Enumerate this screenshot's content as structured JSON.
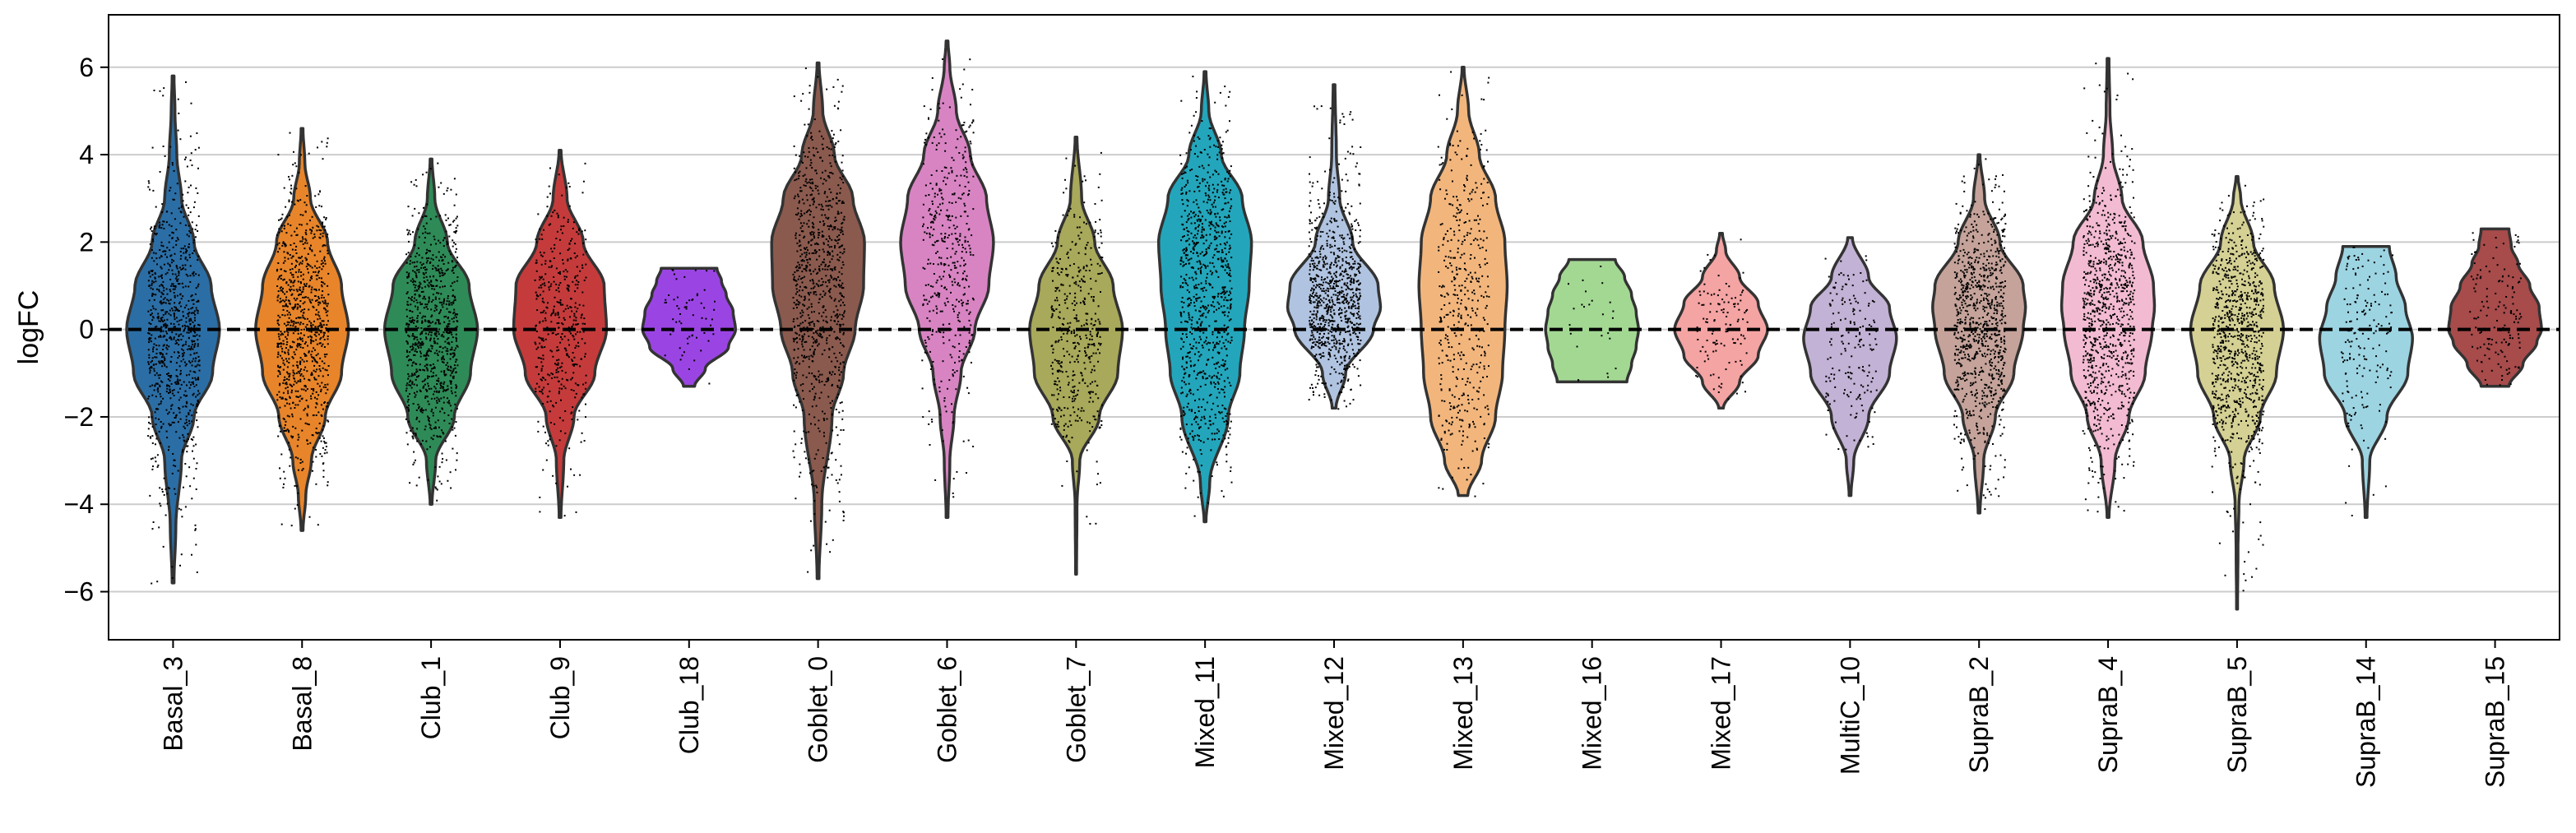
{
  "chart_data": {
    "type": "violin",
    "ylabel": "logFC",
    "ylim": [
      -7.1,
      7.2
    ],
    "yticks": [
      -6,
      -4,
      -2,
      0,
      2,
      4,
      6
    ],
    "grid": "horizontal",
    "reference_line": 0,
    "categories": [
      {
        "name": "Basal_3",
        "color": "#2b6ea5",
        "min": -5.8,
        "max": 5.8,
        "points": 900,
        "profile": [
          [
            -5.8,
            0.02
          ],
          [
            -4.5,
            0.06
          ],
          [
            -3.0,
            0.18
          ],
          [
            -2.0,
            0.45
          ],
          [
            -1.0,
            0.85
          ],
          [
            0.0,
            1.0
          ],
          [
            1.0,
            0.82
          ],
          [
            2.0,
            0.45
          ],
          [
            3.0,
            0.18
          ],
          [
            4.0,
            0.08
          ],
          [
            5.0,
            0.04
          ],
          [
            5.8,
            0.02
          ]
        ]
      },
      {
        "name": "Basal_8",
        "color": "#e8852a",
        "min": -4.6,
        "max": 4.6,
        "points": 900,
        "profile": [
          [
            -4.6,
            0.02
          ],
          [
            -3.8,
            0.08
          ],
          [
            -3.0,
            0.2
          ],
          [
            -2.0,
            0.5
          ],
          [
            -1.0,
            0.85
          ],
          [
            0.0,
            1.0
          ],
          [
            1.0,
            0.85
          ],
          [
            2.0,
            0.55
          ],
          [
            3.0,
            0.18
          ],
          [
            3.8,
            0.06
          ],
          [
            4.6,
            0.02
          ]
        ]
      },
      {
        "name": "Club_1",
        "color": "#2e8b57",
        "min": -4.0,
        "max": 3.9,
        "points": 900,
        "profile": [
          [
            -4.0,
            0.02
          ],
          [
            -3.0,
            0.1
          ],
          [
            -2.0,
            0.5
          ],
          [
            -1.0,
            0.85
          ],
          [
            0.0,
            1.0
          ],
          [
            1.0,
            0.82
          ],
          [
            2.0,
            0.35
          ],
          [
            3.0,
            0.08
          ],
          [
            3.9,
            0.02
          ]
        ]
      },
      {
        "name": "Club_9",
        "color": "#c53b3b",
        "min": -4.3,
        "max": 4.1,
        "points": 450,
        "profile": [
          [
            -4.3,
            0.02
          ],
          [
            -3.0,
            0.08
          ],
          [
            -2.0,
            0.3
          ],
          [
            -1.0,
            0.75
          ],
          [
            0.0,
            1.0
          ],
          [
            1.0,
            0.95
          ],
          [
            2.0,
            0.5
          ],
          [
            3.0,
            0.15
          ],
          [
            4.1,
            0.02
          ]
        ]
      },
      {
        "name": "Club_18",
        "color": "#9a45e3",
        "min": -1.3,
        "max": 1.4,
        "points": 60,
        "profile": [
          [
            -1.3,
            0.12
          ],
          [
            -0.9,
            0.35
          ],
          [
            -0.4,
            0.85
          ],
          [
            0.0,
            1.0
          ],
          [
            0.4,
            0.95
          ],
          [
            0.8,
            0.8
          ],
          [
            1.1,
            0.7
          ],
          [
            1.4,
            0.6
          ]
        ]
      },
      {
        "name": "Goblet_0",
        "color": "#8b5a4e",
        "min": -5.7,
        "max": 6.1,
        "points": 900,
        "profile": [
          [
            -5.7,
            0.02
          ],
          [
            -4.0,
            0.08
          ],
          [
            -2.0,
            0.3
          ],
          [
            -1.0,
            0.55
          ],
          [
            0.0,
            0.8
          ],
          [
            1.0,
            0.98
          ],
          [
            2.0,
            1.0
          ],
          [
            3.0,
            0.75
          ],
          [
            4.0,
            0.35
          ],
          [
            5.0,
            0.1
          ],
          [
            6.1,
            0.02
          ]
        ]
      },
      {
        "name": "Goblet_6",
        "color": "#d884c3",
        "min": -4.3,
        "max": 6.6,
        "points": 450,
        "profile": [
          [
            -4.3,
            0.02
          ],
          [
            -3.0,
            0.06
          ],
          [
            -2.0,
            0.15
          ],
          [
            -1.0,
            0.3
          ],
          [
            0.0,
            0.6
          ],
          [
            1.0,
            0.9
          ],
          [
            2.0,
            1.0
          ],
          [
            3.0,
            0.85
          ],
          [
            4.0,
            0.5
          ],
          [
            5.0,
            0.2
          ],
          [
            6.0,
            0.06
          ],
          [
            6.6,
            0.02
          ]
        ]
      },
      {
        "name": "Goblet_7",
        "color": "#a8a95a",
        "min": -5.6,
        "max": 4.4,
        "points": 450,
        "profile": [
          [
            -5.6,
            0.01
          ],
          [
            -4.0,
            0.02
          ],
          [
            -3.0,
            0.08
          ],
          [
            -2.0,
            0.5
          ],
          [
            -1.0,
            0.9
          ],
          [
            0.0,
            1.0
          ],
          [
            1.0,
            0.8
          ],
          [
            2.0,
            0.4
          ],
          [
            3.0,
            0.12
          ],
          [
            4.4,
            0.02
          ]
        ]
      },
      {
        "name": "Mixed_11",
        "color": "#23a6bb",
        "min": -4.4,
        "max": 5.9,
        "points": 900,
        "profile": [
          [
            -4.4,
            0.02
          ],
          [
            -3.5,
            0.1
          ],
          [
            -2.0,
            0.5
          ],
          [
            -1.0,
            0.75
          ],
          [
            0.0,
            0.85
          ],
          [
            1.0,
            0.95
          ],
          [
            2.0,
            1.0
          ],
          [
            3.0,
            0.8
          ],
          [
            4.0,
            0.35
          ],
          [
            5.0,
            0.08
          ],
          [
            5.9,
            0.02
          ]
        ]
      },
      {
        "name": "Mixed_12",
        "color": "#b0c4e1",
        "min": -1.8,
        "max": 5.6,
        "points": 900,
        "profile": [
          [
            -1.8,
            0.04
          ],
          [
            -1.0,
            0.25
          ],
          [
            0.0,
            0.85
          ],
          [
            0.5,
            1.0
          ],
          [
            1.0,
            0.95
          ],
          [
            2.0,
            0.4
          ],
          [
            3.0,
            0.12
          ],
          [
            4.0,
            0.05
          ],
          [
            5.6,
            0.02
          ]
        ]
      },
      {
        "name": "Mixed_13",
        "color": "#f2b67d",
        "min": -3.8,
        "max": 6.0,
        "points": 450,
        "profile": [
          [
            -3.8,
            0.1
          ],
          [
            -3.0,
            0.4
          ],
          [
            -2.0,
            0.7
          ],
          [
            -1.0,
            0.85
          ],
          [
            0.0,
            0.9
          ],
          [
            1.0,
            0.95
          ],
          [
            2.0,
            0.9
          ],
          [
            3.0,
            0.7
          ],
          [
            4.0,
            0.35
          ],
          [
            5.0,
            0.12
          ],
          [
            6.0,
            0.02
          ]
        ]
      },
      {
        "name": "Mixed_16",
        "color": "#a3d893",
        "min": -1.2,
        "max": 1.6,
        "points": 25,
        "profile": [
          [
            -1.2,
            0.75
          ],
          [
            -0.8,
            0.85
          ],
          [
            -0.4,
            0.95
          ],
          [
            0.0,
            1.0
          ],
          [
            0.4,
            0.95
          ],
          [
            0.8,
            0.85
          ],
          [
            1.2,
            0.7
          ],
          [
            1.6,
            0.5
          ]
        ]
      },
      {
        "name": "Mixed_17",
        "color": "#f4a4a3",
        "min": -1.8,
        "max": 2.2,
        "points": 120,
        "profile": [
          [
            -1.8,
            0.05
          ],
          [
            -1.2,
            0.4
          ],
          [
            -0.6,
            0.8
          ],
          [
            0.0,
            1.0
          ],
          [
            0.6,
            0.8
          ],
          [
            1.2,
            0.4
          ],
          [
            1.8,
            0.1
          ],
          [
            2.2,
            0.03
          ]
        ]
      },
      {
        "name": "MultiC_10",
        "color": "#c2b2d5",
        "min": -3.8,
        "max": 2.1,
        "points": 180,
        "profile": [
          [
            -3.8,
            0.02
          ],
          [
            -3.0,
            0.08
          ],
          [
            -2.0,
            0.4
          ],
          [
            -1.0,
            0.85
          ],
          [
            -0.2,
            1.0
          ],
          [
            0.5,
            0.85
          ],
          [
            1.2,
            0.4
          ],
          [
            2.1,
            0.05
          ]
        ]
      },
      {
        "name": "SupraB_2",
        "color": "#c5a39a",
        "min": -4.2,
        "max": 4.0,
        "points": 900,
        "profile": [
          [
            -4.2,
            0.02
          ],
          [
            -3.0,
            0.1
          ],
          [
            -2.0,
            0.35
          ],
          [
            -1.0,
            0.75
          ],
          [
            0.0,
            0.95
          ],
          [
            0.5,
            1.0
          ],
          [
            1.0,
            0.95
          ],
          [
            2.0,
            0.45
          ],
          [
            3.0,
            0.12
          ],
          [
            4.0,
            0.02
          ]
        ]
      },
      {
        "name": "SupraB_4",
        "color": "#f3bbd1",
        "min": -4.3,
        "max": 6.2,
        "points": 900,
        "profile": [
          [
            -4.3,
            0.02
          ],
          [
            -3.0,
            0.15
          ],
          [
            -2.0,
            0.45
          ],
          [
            -1.0,
            0.8
          ],
          [
            0.0,
            0.95
          ],
          [
            0.5,
            1.0
          ],
          [
            1.0,
            0.98
          ],
          [
            2.0,
            0.75
          ],
          [
            3.0,
            0.3
          ],
          [
            4.0,
            0.1
          ],
          [
            5.0,
            0.04
          ],
          [
            6.2,
            0.02
          ]
        ]
      },
      {
        "name": "SupraB_5",
        "color": "#d5d194",
        "min": -6.4,
        "max": 3.5,
        "points": 900,
        "profile": [
          [
            -6.4,
            0.01
          ],
          [
            -5.0,
            0.02
          ],
          [
            -4.0,
            0.04
          ],
          [
            -3.0,
            0.15
          ],
          [
            -2.0,
            0.5
          ],
          [
            -1.0,
            0.85
          ],
          [
            0.0,
            1.0
          ],
          [
            1.0,
            0.8
          ],
          [
            2.0,
            0.35
          ],
          [
            3.0,
            0.08
          ],
          [
            3.5,
            0.02
          ]
        ]
      },
      {
        "name": "SupraB_14",
        "color": "#9dd4e2",
        "min": -4.3,
        "max": 1.9,
        "points": 180,
        "profile": [
          [
            -4.3,
            0.02
          ],
          [
            -3.0,
            0.08
          ],
          [
            -2.0,
            0.45
          ],
          [
            -1.0,
            0.9
          ],
          [
            -0.2,
            1.0
          ],
          [
            0.5,
            0.85
          ],
          [
            1.2,
            0.65
          ],
          [
            1.9,
            0.5
          ]
        ]
      },
      {
        "name": "SupraB_15",
        "color": "#a74b4b",
        "min": -1.3,
        "max": 2.3,
        "points": 150,
        "profile": [
          [
            -1.3,
            0.3
          ],
          [
            -0.8,
            0.6
          ],
          [
            -0.3,
            0.9
          ],
          [
            0.0,
            1.0
          ],
          [
            0.5,
            0.95
          ],
          [
            1.0,
            0.75
          ],
          [
            1.5,
            0.5
          ],
          [
            1.9,
            0.35
          ],
          [
            2.3,
            0.3
          ]
        ]
      }
    ]
  }
}
